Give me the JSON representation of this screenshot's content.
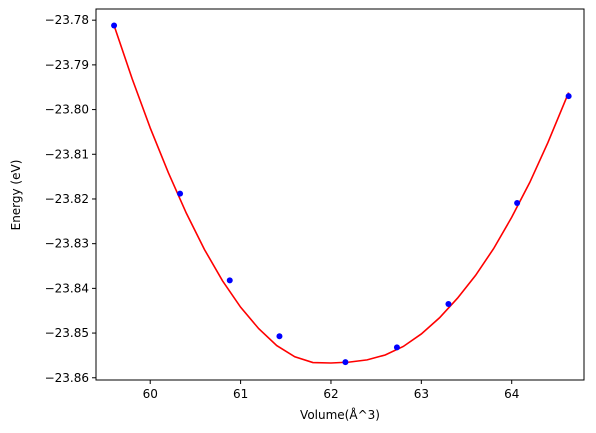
{
  "chart_data": {
    "type": "scatter",
    "title": "",
    "xlabel": "Volume(Å^3)",
    "ylabel": "Energy (eV)",
    "xlim": [
      59.4,
      64.8
    ],
    "ylim": [
      -23.8605,
      -23.7775
    ],
    "xticks": [
      60,
      61,
      62,
      63,
      64
    ],
    "xtick_labels": [
      "60",
      "61",
      "62",
      "63",
      "64"
    ],
    "yticks": [
      -23.78,
      -23.79,
      -23.8,
      -23.81,
      -23.82,
      -23.83,
      -23.84,
      -23.85,
      -23.86
    ],
    "ytick_labels": [
      "−23.78",
      "−23.79",
      "−23.80",
      "−23.81",
      "−23.82",
      "−23.83",
      "−23.84",
      "−23.85",
      "−23.86"
    ],
    "grid": false,
    "legend": false,
    "series": [
      {
        "kind": "points",
        "color": "#0000ff",
        "x": [
          59.6,
          60.33,
          60.88,
          61.43,
          62.16,
          62.73,
          63.3,
          64.06,
          64.63
        ],
        "y": [
          -23.7812,
          -23.8188,
          -23.8382,
          -23.8507,
          -23.8565,
          -23.8532,
          -23.8435,
          -23.8209,
          -23.797
        ]
      },
      {
        "kind": "fit-curve",
        "color": "#ff0000",
        "x": [
          59.6,
          59.8,
          60.0,
          60.2,
          60.4,
          60.6,
          60.8,
          61.0,
          61.2,
          61.4,
          61.6,
          61.8,
          62.0,
          62.2,
          62.4,
          62.6,
          62.8,
          63.0,
          63.2,
          63.4,
          63.6,
          63.8,
          64.0,
          64.2,
          64.4,
          64.63
        ],
        "y": [
          -23.7812,
          -23.7931,
          -23.8041,
          -23.8141,
          -23.8232,
          -23.8313,
          -23.8383,
          -23.8442,
          -23.849,
          -23.8528,
          -23.8553,
          -23.8566,
          -23.8567,
          -23.8565,
          -23.856,
          -23.8549,
          -23.853,
          -23.8502,
          -23.8466,
          -23.8422,
          -23.8371,
          -23.8311,
          -23.8241,
          -23.8163,
          -23.8074,
          -23.7962
        ]
      }
    ]
  }
}
